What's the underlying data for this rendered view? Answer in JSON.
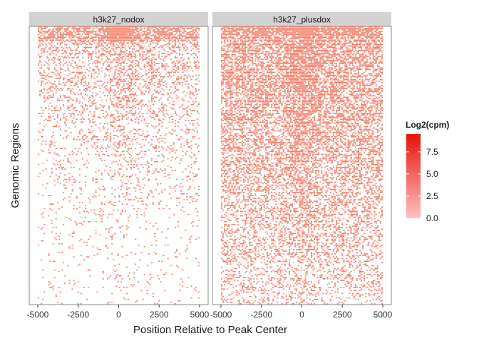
{
  "chart_data": {
    "type": "heatmap",
    "panels": [
      {
        "name": "h3k27_nodox",
        "density": "low"
      },
      {
        "name": "h3k27_plusdox",
        "density": "high"
      }
    ],
    "xlabel": "Position Relative to Peak Center",
    "ylabel": "Genomic Regions",
    "xlim": [
      -5000,
      5000
    ],
    "x_ticks": [
      "-5000",
      "-2500",
      "0",
      "2500",
      "5000"
    ],
    "x_tick_values": [
      -5000,
      -2500,
      0,
      2500,
      5000
    ],
    "legend": {
      "title": "Log2(cpm)",
      "ticks": [
        "7.5",
        "5.0",
        "2.5",
        "0.0"
      ],
      "tick_values": [
        7.5,
        5.0,
        2.5,
        0.0
      ],
      "range": [
        0,
        9.5
      ],
      "low_color": "#fbc2c2",
      "high_color": "#e8120a",
      "placement": "right"
    },
    "cell_color": "#f5826c",
    "strip_color": "#d3d3d3",
    "grid": false
  }
}
